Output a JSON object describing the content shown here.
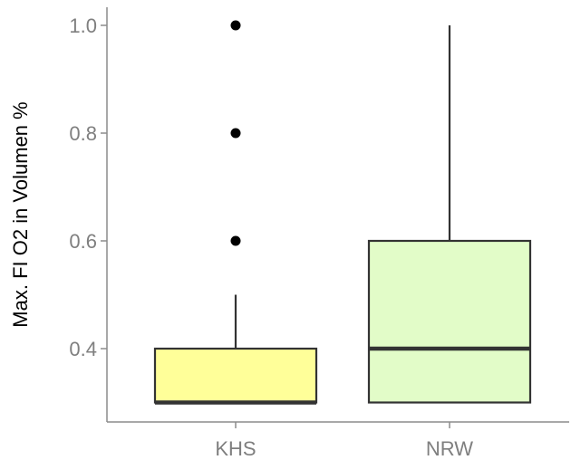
{
  "chart_data": {
    "type": "box",
    "ylabel": "Max. FI O2 in Volumen %",
    "xlabel": "",
    "ylim": [
      0.28,
      1.03
    ],
    "yticks": [
      0.4,
      0.6,
      0.8,
      1.0
    ],
    "ytick_labels": [
      "0.4",
      "0.6",
      "0.8",
      "1.0"
    ],
    "categories": [
      "KHS",
      "NRW"
    ],
    "boxes": [
      {
        "category": "KHS",
        "lower_whisker": 0.3,
        "q1": 0.3,
        "median": 0.3,
        "q3": 0.4,
        "upper_whisker": 0.5,
        "outliers": [
          0.6,
          0.8,
          1.0
        ],
        "fill": "#ffff99"
      },
      {
        "category": "NRW",
        "lower_whisker": 0.3,
        "q1": 0.3,
        "median": 0.4,
        "q3": 0.6,
        "upper_whisker": 1.0,
        "outliers": [],
        "fill": "#e2fcc8"
      }
    ],
    "grid": false,
    "legend": "none"
  }
}
